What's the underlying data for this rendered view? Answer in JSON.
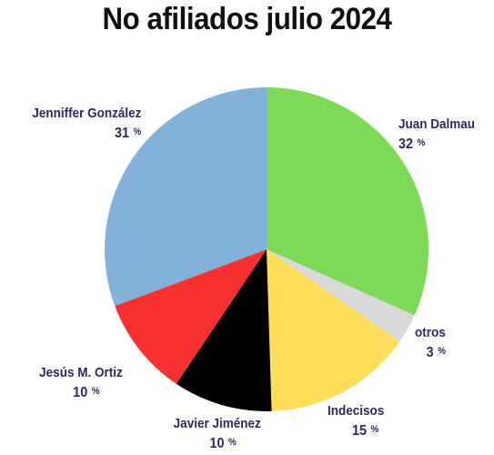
{
  "chart_data": {
    "type": "pie",
    "title": "No afiliados julio 2024",
    "unit": "%",
    "slices": [
      {
        "name": "Juan Dalmau",
        "value": 32,
        "color": "#7ed957"
      },
      {
        "name": "otros",
        "value": 3,
        "color": "#d9d9d9"
      },
      {
        "name": "Indecisos",
        "value": 15,
        "color": "#ffde59"
      },
      {
        "name": "Javier Jiménez",
        "value": 10,
        "color": "#000000"
      },
      {
        "name": "Jesús M. Ortiz",
        "value": 10,
        "color": "#f73131"
      },
      {
        "name": "Jenniffer González",
        "value": 31,
        "color": "#83b1da"
      }
    ]
  }
}
